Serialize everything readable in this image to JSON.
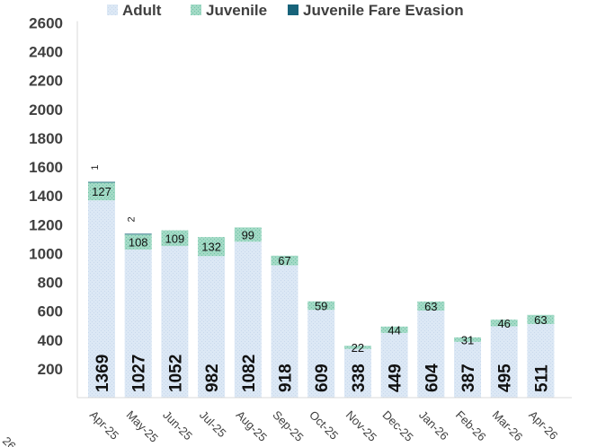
{
  "chart_data": {
    "type": "bar",
    "stacked": true,
    "categories": [
      "Apr-25",
      "May-25",
      "Jun-25",
      "Jul-25",
      "Aug-25",
      "Sep-25",
      "Oct-25",
      "Nov-25",
      "Dec-25",
      "Jan-26",
      "Feb-26",
      "Mar-26",
      "Apr-26"
    ],
    "series": [
      {
        "name": "Adult",
        "color": "#dce8f5",
        "values": [
          1369,
          1027,
          1052,
          982,
          1082,
          918,
          609,
          338,
          449,
          604,
          387,
          495,
          511
        ]
      },
      {
        "name": "Juvenile",
        "color": "#9fd8c4",
        "values": [
          127,
          108,
          109,
          132,
          99,
          67,
          59,
          22,
          44,
          63,
          31,
          46,
          63
        ]
      },
      {
        "name": "Juvenile Fare Evasion",
        "color": "#17637a",
        "values": [
          1,
          2,
          null,
          null,
          null,
          null,
          null,
          null,
          null,
          null,
          null,
          null,
          null
        ]
      }
    ],
    "ylim": [
      0,
      2600
    ],
    "yticks": [
      200,
      400,
      600,
      800,
      1000,
      1200,
      1400,
      1600,
      1800,
      2000,
      2200,
      2400,
      2600
    ],
    "grid": false,
    "legend": "top",
    "fragment_label": "26"
  }
}
